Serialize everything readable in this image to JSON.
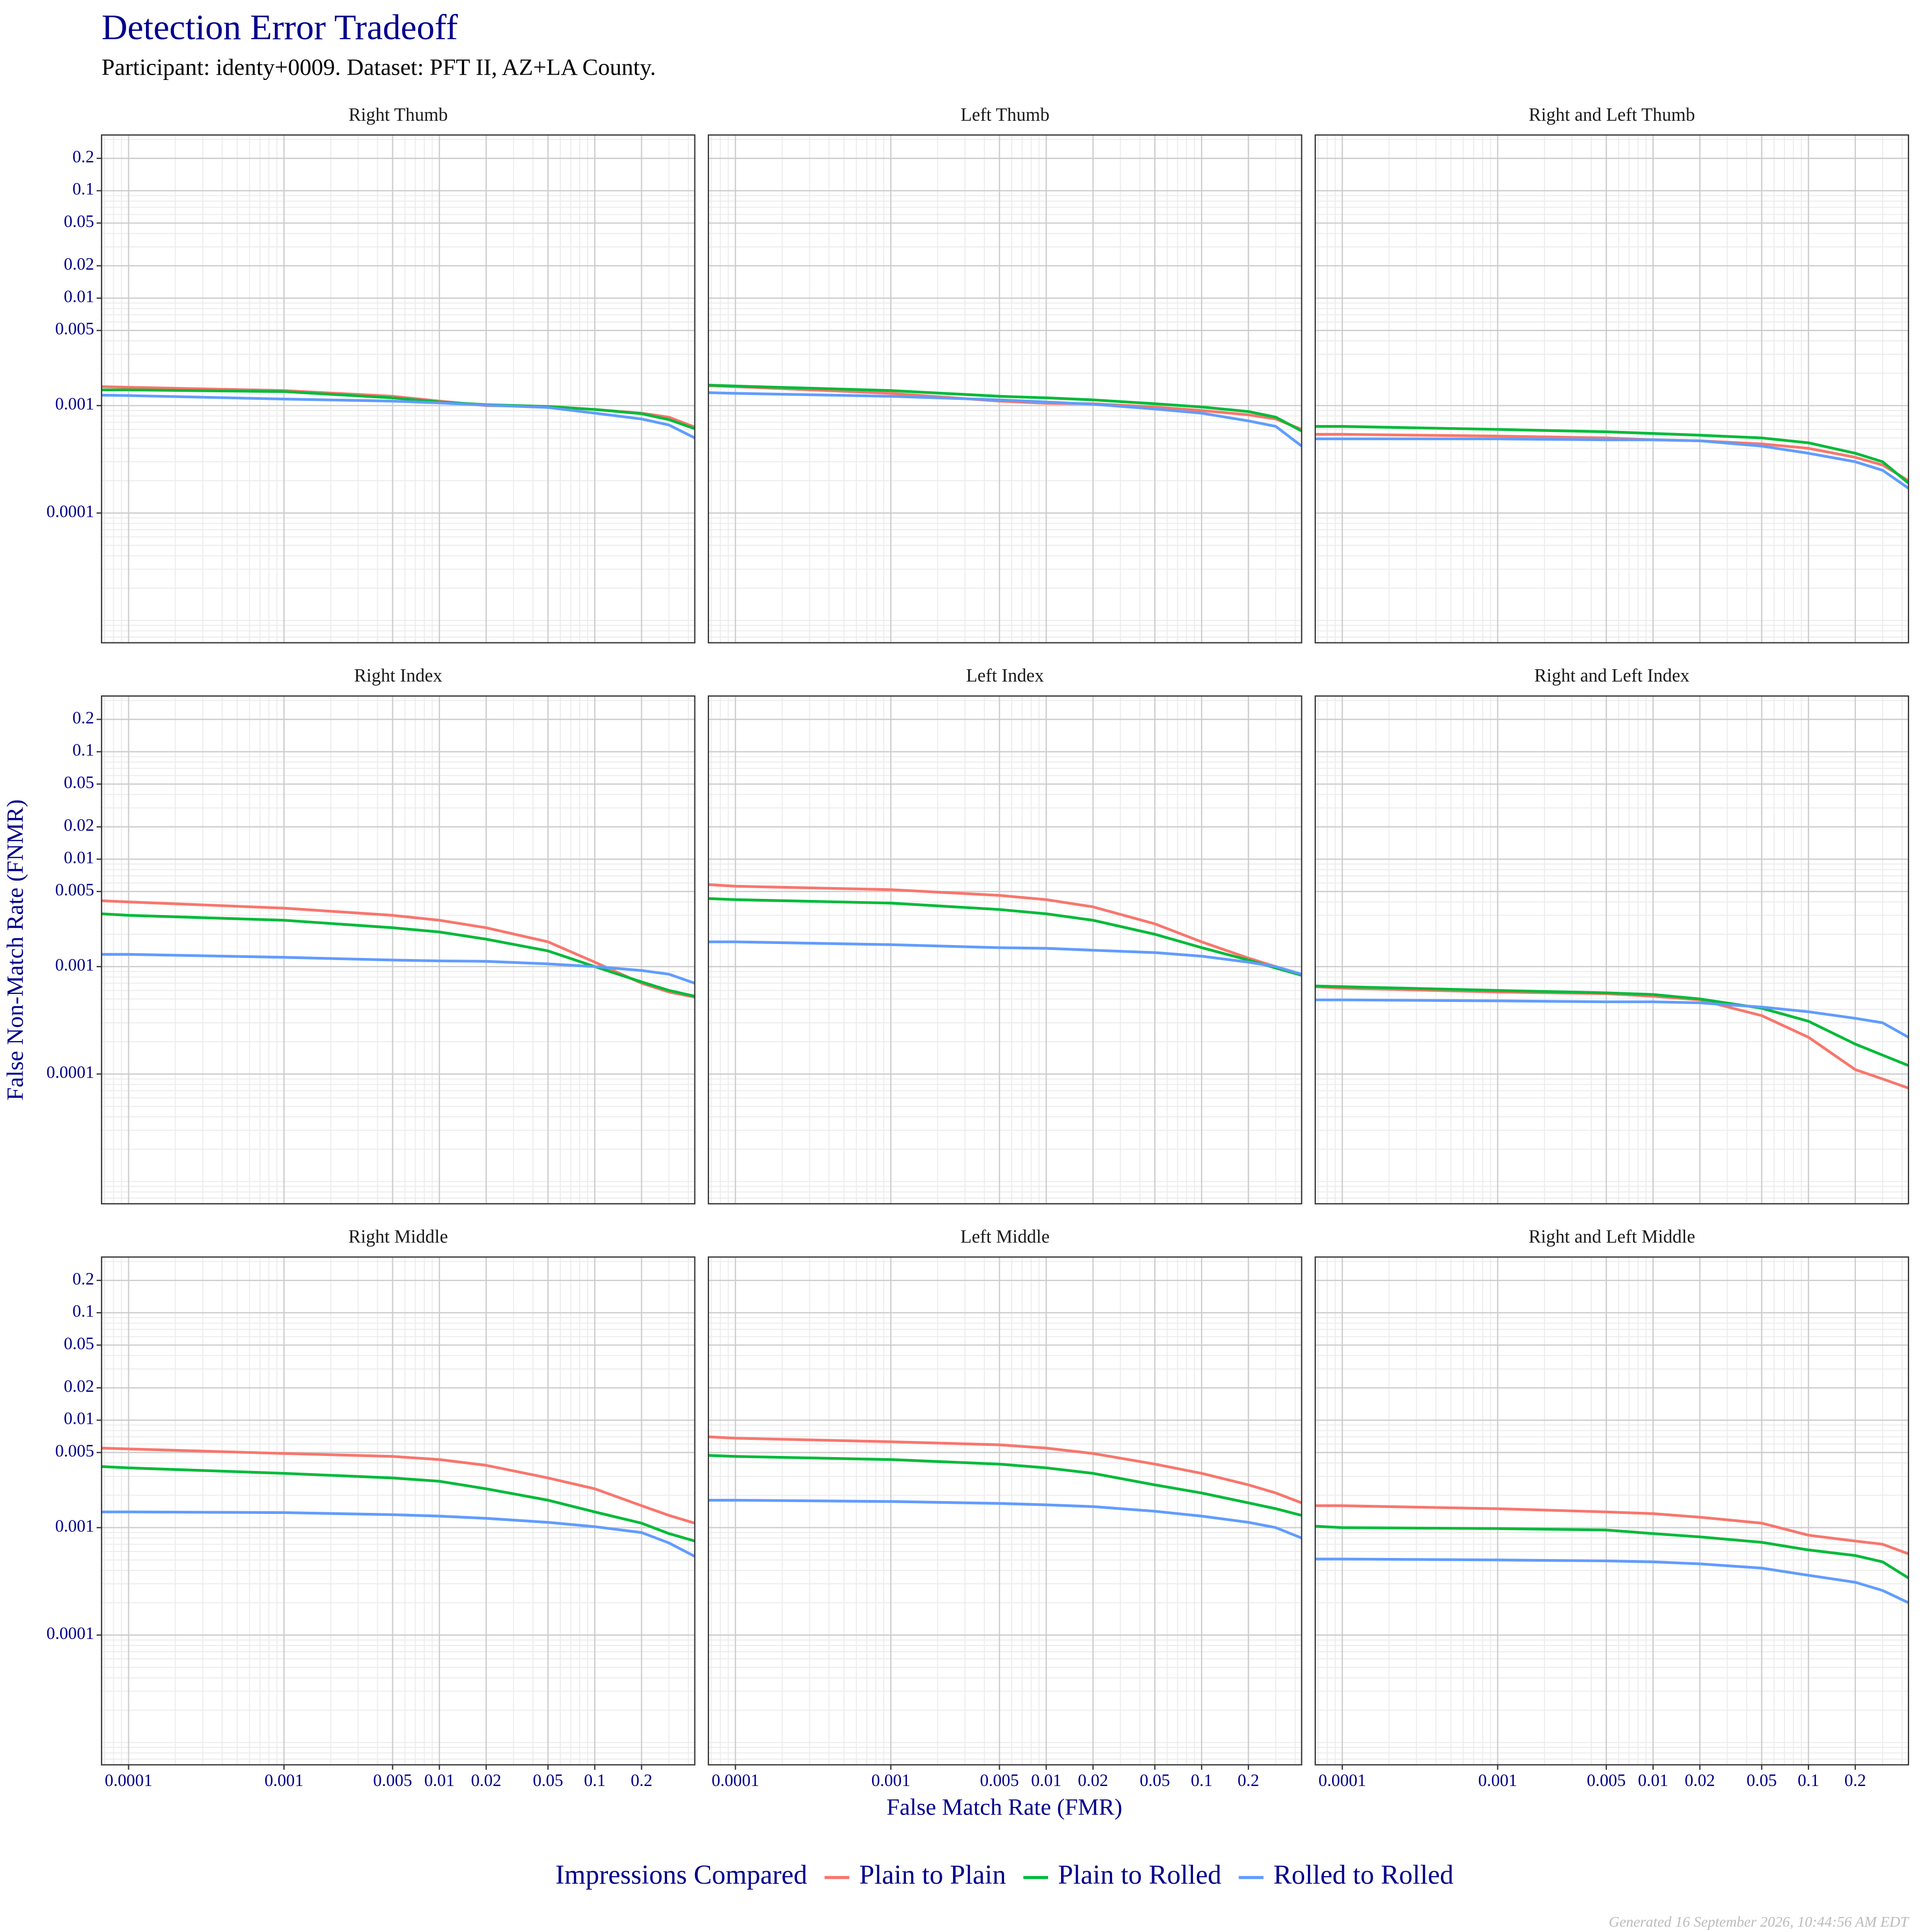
{
  "chart_data": {
    "type": "line",
    "title": "Detection Error Tradeoff",
    "subtitle": "Participant: identy+0009. Dataset: PFT II, AZ+LA County.",
    "x_label": "False Match Rate (FMR)",
    "y_label": "False Non-Match Rate (FNMR)",
    "legend_title": "Impressions Compared",
    "legend_position": "bottom",
    "log_x": true,
    "log_y": true,
    "grid": true,
    "xlim": [
      6.7e-05,
      0.44
    ],
    "ylim": [
      6.2e-06,
      0.33
    ],
    "xticks": [
      0.0001,
      0.001,
      0.005,
      0.01,
      0.02,
      0.05,
      0.1,
      0.2
    ],
    "yticks": [
      0.0001,
      0.001,
      0.005,
      0.01,
      0.02,
      0.05,
      0.1,
      0.2
    ],
    "x": [
      6.7e-05,
      0.0001,
      0.001,
      0.005,
      0.01,
      0.02,
      0.05,
      0.1,
      0.2,
      0.3,
      0.44
    ],
    "series": [
      {
        "name": "Plain to Plain",
        "color": "#F8766D"
      },
      {
        "name": "Plain to Rolled",
        "color": "#00BA38"
      },
      {
        "name": "Rolled to Rolled",
        "color": "#619CFF"
      }
    ],
    "facets": [
      {
        "title": "Right Thumb",
        "series": [
          {
            "values": [
              0.0015,
              0.00148,
              0.00138,
              0.00122,
              0.0011,
              0.001,
              0.00098,
              0.00092,
              0.00085,
              0.00078,
              0.00063
            ]
          },
          {
            "values": [
              0.0014,
              0.0014,
              0.00135,
              0.00118,
              0.00108,
              0.00102,
              0.00098,
              0.00092,
              0.00084,
              0.00074,
              0.00061
            ]
          },
          {
            "values": [
              0.00125,
              0.00124,
              0.00115,
              0.0011,
              0.00106,
              0.00101,
              0.00096,
              0.00085,
              0.00075,
              0.00066,
              0.0005
            ]
          }
        ]
      },
      {
        "title": "Left Thumb",
        "series": [
          {
            "values": [
              0.00153,
              0.0015,
              0.0013,
              0.0011,
              0.00105,
              0.00104,
              0.00097,
              0.0009,
              0.00082,
              0.00075,
              0.0006
            ]
          },
          {
            "values": [
              0.00155,
              0.00152,
              0.00138,
              0.00122,
              0.00118,
              0.00113,
              0.00104,
              0.00097,
              0.00088,
              0.00078,
              0.00058
            ]
          },
          {
            "values": [
              0.00132,
              0.0013,
              0.00122,
              0.00113,
              0.00108,
              0.00103,
              0.00093,
              0.00085,
              0.00072,
              0.00064,
              0.00042
            ]
          }
        ]
      },
      {
        "title": "Right and Left Thumb",
        "series": [
          {
            "values": [
              0.00054,
              0.00054,
              0.00052,
              0.0005,
              0.00048,
              0.00047,
              0.00044,
              0.0004,
              0.00033,
              0.00028,
              0.0002
            ]
          },
          {
            "values": [
              0.00064,
              0.00064,
              0.0006,
              0.00057,
              0.00055,
              0.00053,
              0.0005,
              0.00045,
              0.00036,
              0.0003,
              0.00019
            ]
          },
          {
            "values": [
              0.00049,
              0.00049,
              0.00049,
              0.00048,
              0.00048,
              0.00047,
              0.00042,
              0.00036,
              0.0003,
              0.00025,
              0.00017
            ]
          }
        ]
      },
      {
        "title": "Right Index",
        "series": [
          {
            "values": [
              0.0041,
              0.004,
              0.0035,
              0.003,
              0.0027,
              0.0023,
              0.0017,
              0.0011,
              0.0007,
              0.00058,
              0.00052
            ]
          },
          {
            "values": [
              0.0031,
              0.003,
              0.0027,
              0.0023,
              0.0021,
              0.0018,
              0.0014,
              0.001,
              0.00072,
              0.0006,
              0.00053
            ]
          },
          {
            "values": [
              0.0013,
              0.0013,
              0.00122,
              0.00115,
              0.00113,
              0.00112,
              0.00106,
              0.001,
              0.00092,
              0.00085,
              0.0007
            ]
          }
        ]
      },
      {
        "title": "Left Index",
        "series": [
          {
            "values": [
              0.0058,
              0.0056,
              0.0052,
              0.0046,
              0.0042,
              0.0036,
              0.0025,
              0.0017,
              0.0012,
              0.001,
              0.00083
            ]
          },
          {
            "values": [
              0.0043,
              0.0042,
              0.0039,
              0.0034,
              0.0031,
              0.0027,
              0.002,
              0.0015,
              0.00115,
              0.00097,
              0.00083
            ]
          },
          {
            "values": [
              0.0017,
              0.0017,
              0.0016,
              0.0015,
              0.00148,
              0.00142,
              0.00135,
              0.00125,
              0.0011,
              0.001,
              0.00085
            ]
          }
        ]
      },
      {
        "title": "Right and Left Index",
        "series": [
          {
            "values": [
              0.00065,
              0.00063,
              0.00058,
              0.00056,
              0.00053,
              0.00049,
              0.00035,
              0.00022,
              0.00011,
              9e-05,
              7.4e-05
            ]
          },
          {
            "values": [
              0.00066,
              0.00065,
              0.0006,
              0.00057,
              0.00055,
              0.0005,
              0.00041,
              0.00031,
              0.00019,
              0.00015,
              0.00012
            ]
          },
          {
            "values": [
              0.00049,
              0.00049,
              0.00048,
              0.00047,
              0.00047,
              0.00046,
              0.00042,
              0.00038,
              0.00033,
              0.0003,
              0.00022
            ]
          }
        ]
      },
      {
        "title": "Right Middle",
        "series": [
          {
            "values": [
              0.0055,
              0.0054,
              0.0049,
              0.0046,
              0.0043,
              0.0038,
              0.0029,
              0.0023,
              0.0016,
              0.0013,
              0.0011
            ]
          },
          {
            "values": [
              0.0037,
              0.0036,
              0.0032,
              0.0029,
              0.0027,
              0.0023,
              0.0018,
              0.0014,
              0.0011,
              0.00088,
              0.00075
            ]
          },
          {
            "values": [
              0.0014,
              0.0014,
              0.00138,
              0.00132,
              0.00128,
              0.00122,
              0.00112,
              0.00102,
              0.0009,
              0.00072,
              0.00054
            ]
          }
        ]
      },
      {
        "title": "Left Middle",
        "series": [
          {
            "values": [
              0.007,
              0.0068,
              0.0063,
              0.0059,
              0.0055,
              0.0049,
              0.0039,
              0.0032,
              0.0025,
              0.0021,
              0.0017
            ]
          },
          {
            "values": [
              0.0047,
              0.0046,
              0.0043,
              0.0039,
              0.0036,
              0.0032,
              0.0025,
              0.0021,
              0.0017,
              0.0015,
              0.0013
            ]
          },
          {
            "values": [
              0.0018,
              0.0018,
              0.00175,
              0.00168,
              0.00163,
              0.00157,
              0.00142,
              0.00128,
              0.00112,
              0.001,
              0.0008
            ]
          }
        ]
      },
      {
        "title": "Right and Left Middle",
        "series": [
          {
            "values": [
              0.0016,
              0.0016,
              0.0015,
              0.0014,
              0.00135,
              0.00125,
              0.0011,
              0.00085,
              0.00075,
              0.0007,
              0.00057
            ]
          },
          {
            "values": [
              0.00103,
              0.001,
              0.00098,
              0.00095,
              0.00088,
              0.00082,
              0.00073,
              0.00062,
              0.00055,
              0.00048,
              0.00034
            ]
          },
          {
            "values": [
              0.00051,
              0.00051,
              0.0005,
              0.00049,
              0.00048,
              0.00046,
              0.00042,
              0.00036,
              0.00031,
              0.00026,
              0.0002
            ]
          }
        ]
      }
    ]
  },
  "footer": "Generated 16 September 2026, 10:44:56 AM EDT"
}
